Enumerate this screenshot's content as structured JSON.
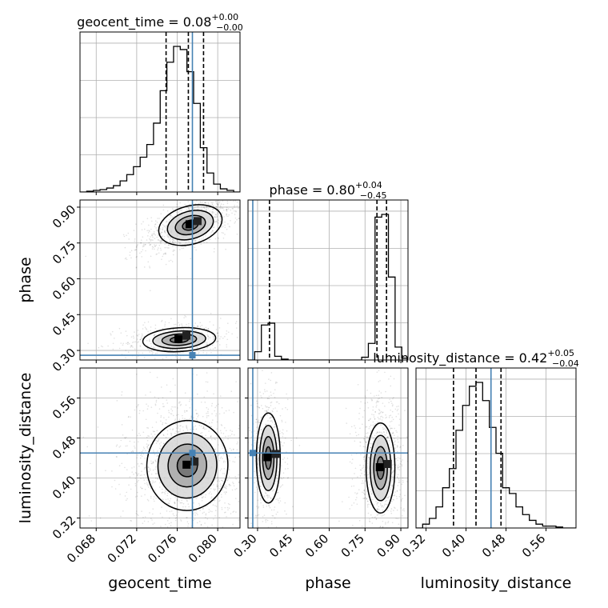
{
  "chart_data": {
    "type": "corner",
    "parameters": [
      "geocent_time",
      "phase",
      "luminosity_distance"
    ],
    "truth_color": "#4682b4",
    "truths": {
      "geocent_time": 0.0775,
      "phase": 0.28,
      "luminosity_distance": 0.45
    },
    "titles": {
      "geocent_time": {
        "label": "geocent_time = 0.08",
        "plus": "+0.00",
        "minus": "−0.00"
      },
      "phase": {
        "label": "phase = 0.80",
        "plus": "+0.04",
        "minus": "−0.45"
      },
      "luminosity_distance": {
        "label": "luminosity_distance = 0.42",
        "plus": "+0.05",
        "minus": "−0.04"
      }
    },
    "axes": {
      "geocent_time": {
        "range": [
          0.0664,
          0.0822
        ],
        "ticks": [
          0.068,
          0.072,
          0.076,
          0.08
        ],
        "tick_labels": [
          "0.068",
          "0.072",
          "0.076",
          "0.080"
        ]
      },
      "phase": {
        "range": [
          0.26,
          0.93
        ],
        "ticks": [
          0.3,
          0.45,
          0.6,
          0.75,
          0.9
        ],
        "tick_labels": [
          "0.30",
          "0.45",
          "0.60",
          "0.75",
          "0.90"
        ]
      },
      "luminosity_distance": {
        "range": [
          0.3,
          0.62
        ],
        "ticks": [
          0.32,
          0.4,
          0.48,
          0.56
        ],
        "tick_labels": [
          "0.32",
          "0.40",
          "0.48",
          "0.56"
        ]
      }
    },
    "histograms": {
      "geocent_time": {
        "edges": [
          0.0664,
          0.06706,
          0.06772,
          0.06838,
          0.06904,
          0.0697,
          0.07036,
          0.07102,
          0.07168,
          0.07234,
          0.073,
          0.07366,
          0.07432,
          0.07498,
          0.07564,
          0.0763,
          0.07696,
          0.07762,
          0.07828,
          0.07894,
          0.0796,
          0.08026,
          0.08092,
          0.08158,
          0.0822
        ],
        "counts": [
          0,
          1,
          2,
          3,
          5,
          8,
          14,
          22,
          32,
          44,
          60,
          87,
          128,
          164,
          184,
          180,
          152,
          112,
          56,
          24,
          10,
          4,
          2,
          0
        ]
      },
      "phase": {
        "edges": [
          0.26,
          0.288,
          0.316,
          0.344,
          0.372,
          0.4,
          0.428,
          0.456,
          0.484,
          0.512,
          0.54,
          0.568,
          0.596,
          0.624,
          0.652,
          0.68,
          0.708,
          0.736,
          0.764,
          0.792,
          0.82,
          0.848,
          0.876,
          0.904,
          0.932
        ],
        "counts": [
          0,
          9,
          38,
          40,
          4,
          1,
          0,
          0,
          0,
          0,
          0,
          0,
          0,
          0,
          0,
          0,
          0,
          3,
          18,
          155,
          158,
          90,
          14,
          2
        ]
      },
      "luminosity_distance": {
        "edges": [
          0.3,
          0.3133,
          0.3267,
          0.34,
          0.3533,
          0.3667,
          0.38,
          0.3933,
          0.4067,
          0.42,
          0.4333,
          0.4467,
          0.46,
          0.4733,
          0.4867,
          0.5,
          0.5133,
          0.5267,
          0.54,
          0.5533,
          0.5667,
          0.58,
          0.5933,
          0.6067,
          0.62
        ],
        "counts": [
          0,
          4,
          10,
          22,
          42,
          62,
          102,
          128,
          148,
          152,
          133,
          105,
          78,
          42,
          36,
          22,
          14,
          8,
          4,
          2,
          2,
          1,
          0,
          0
        ]
      }
    },
    "quantiles": {
      "geocent_time": [
        0.0749,
        0.0771,
        0.0786
      ],
      "phase": [
        0.35,
        0.8,
        0.84
      ],
      "luminosity_distance": [
        0.375,
        0.42,
        0.47
      ]
    },
    "posterior_modes": {
      "geocent_time_vs_phase": [
        {
          "center": [
            0.0773,
            0.825
          ],
          "sd": [
            0.0016,
            0.04
          ],
          "corr": 0.6,
          "weight": 0.65
        },
        {
          "center": [
            0.0762,
            0.345
          ],
          "sd": [
            0.0018,
            0.025
          ],
          "corr": 0.2,
          "weight": 0.35
        }
      ],
      "geocent_time_vs_luminosity_distance": [
        {
          "center": [
            0.077,
            0.425
          ],
          "sd": [
            0.002,
            0.045
          ],
          "corr": -0.1,
          "weight": 1.0
        }
      ],
      "phase_vs_luminosity_distance": [
        {
          "center": [
            0.815,
            0.42
          ],
          "sd": [
            0.03,
            0.045
          ],
          "corr": 0.0,
          "weight": 0.65
        },
        {
          "center": [
            0.345,
            0.44
          ],
          "sd": [
            0.025,
            0.045
          ],
          "corr": 0.0,
          "weight": 0.35
        }
      ]
    },
    "grid": true
  }
}
